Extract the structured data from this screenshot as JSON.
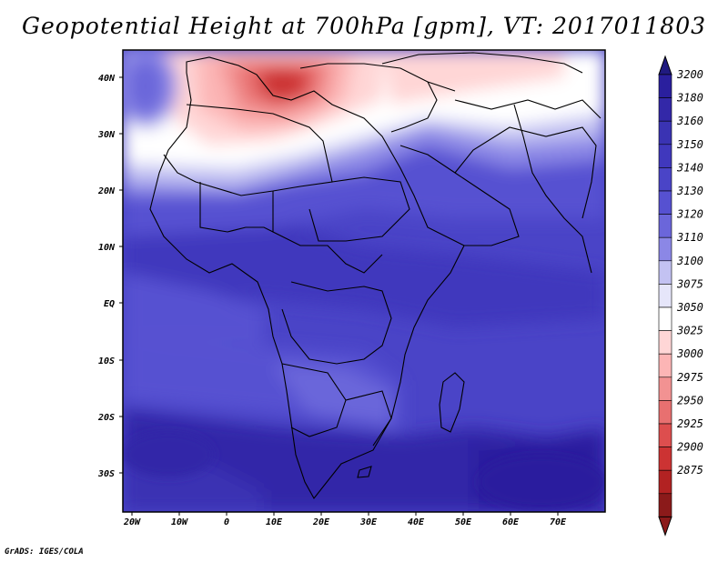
{
  "title": "Geopotential Height at 700hPa [gpm], VT: 2017011803",
  "credit": "GrADS: IGES/COLA",
  "map": {
    "lat_labels": [
      "40N",
      "30N",
      "20N",
      "10N",
      "EQ",
      "10S",
      "20S",
      "30S"
    ],
    "lon_labels": [
      "20W",
      "10W",
      "0",
      "10E",
      "20E",
      "30E",
      "40E",
      "50E",
      "60E",
      "70E"
    ]
  },
  "colorbar": {
    "levels": [
      "3200",
      "3180",
      "3160",
      "3150",
      "3140",
      "3130",
      "3120",
      "3110",
      "3100",
      "3075",
      "3050",
      "3025",
      "3000",
      "2975",
      "2950",
      "2925",
      "2900",
      "2875"
    ],
    "colors": [
      "#2a1f9e",
      "#3328a8",
      "#3a33b3",
      "#4038bd",
      "#4a44c7",
      "#5651d1",
      "#6b66da",
      "#8b87e6",
      "#c3c2f2",
      "#e6e6fa",
      "#ffffff",
      "#ffd6d6",
      "#fcb5b5",
      "#f29292",
      "#e87070",
      "#dd4e4e",
      "#cc3333",
      "#b22222",
      "#8b1a1a"
    ],
    "accent_top": "#201a80",
    "accent_bottom": "#8b1a1a"
  }
}
